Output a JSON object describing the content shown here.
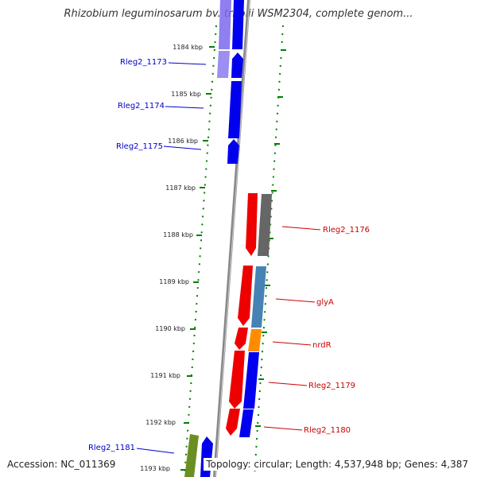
{
  "header": {
    "title": "Rhizobium leguminosarum bv. trifolii WSM2304, complete genom..."
  },
  "footer": {
    "accession": "Accession: NC_011369",
    "topology": "Topology: circular; Length: 4,537,948 bp; Genes: 4,387"
  },
  "scale_labels": [
    "1184 kbp",
    "1185 kbp",
    "1186 kbp",
    "1187 kbp",
    "1188 kbp",
    "1189 kbp",
    "1190 kbp",
    "1191 kbp",
    "1192 kbp",
    "1193 kbp"
  ],
  "gene_labels": {
    "left": [
      "Rleg2_1173",
      "Rleg2_1174",
      "Rleg2_1175",
      "Rleg2_1181"
    ],
    "right": [
      "Rleg2_1176",
      "glyA",
      "nrdR",
      "Rleg2_1179",
      "Rleg2_1180"
    ]
  },
  "colors": {
    "blue_gene": "#0000ee",
    "red_gene": "#ee0000",
    "steel_gene": "#4682b4",
    "orange_gene": "#ff8c00",
    "gray_gene": "#666666",
    "purple_gene": "#7b68ee",
    "olive_gene": "#6b8e23",
    "tick_green": "#008000",
    "backbone": "#888888",
    "left_label_color": "#0000cc",
    "right_label_color": "#cc0000"
  }
}
